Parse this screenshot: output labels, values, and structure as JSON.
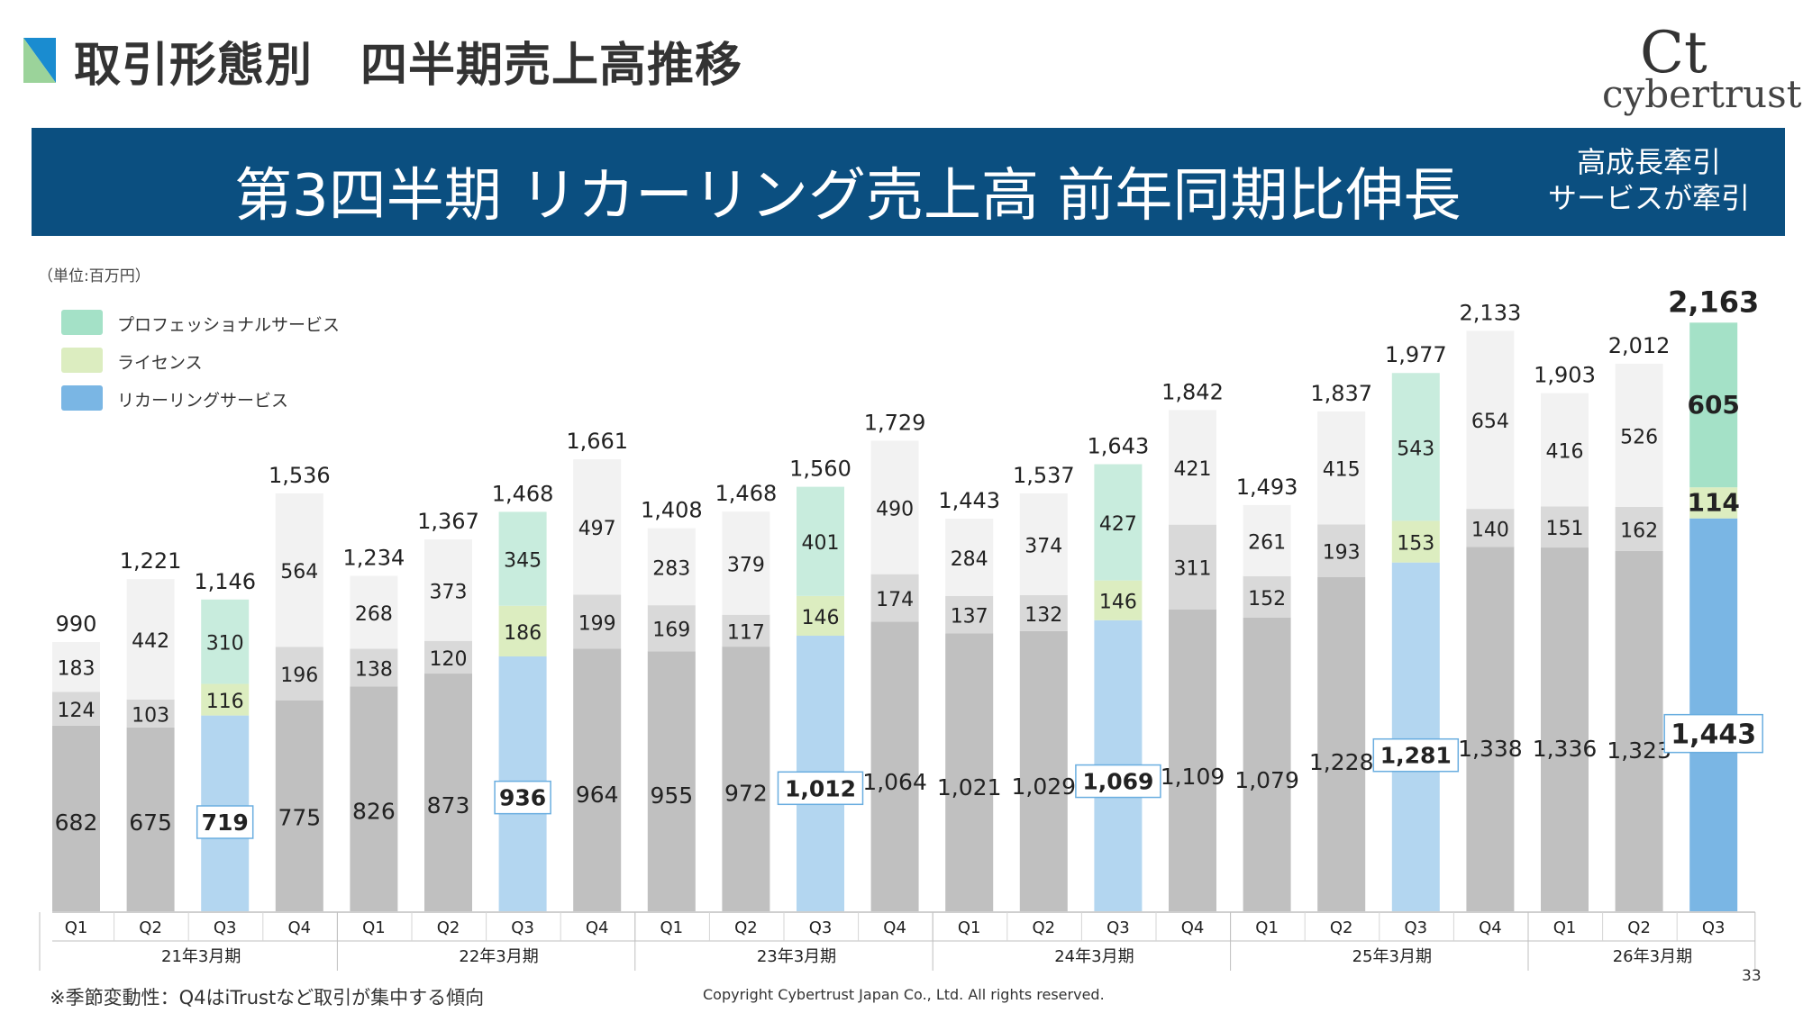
{
  "header": {
    "title": "取引形態別　四半期売上高推移",
    "logo_mark": "Ct",
    "logo_text": "cybertrust"
  },
  "banner": {
    "main": "第3四半期 リカーリング売上高 前年同期比伸長",
    "sub_line1": "高成長牽引",
    "sub_line2": "サービスが牽引"
  },
  "unit_label": "（単位:百万円）",
  "footnote": "※季節変動性：Q4はiTrustなど取引が集中する傾向",
  "copyright": "Copyright Cybertrust Japan Co., Ltd. All rights reserved.",
  "page_number": "33",
  "colors": {
    "recurring": "#b3d6f0",
    "recurring_latest": "#7ab6e4",
    "license": "#dcedc0",
    "professional": "#c8ecdd",
    "professional_latest": "#a4e1c7",
    "grey_bottom": "#c0c0c0",
    "grey_middle": "#d9d9d9",
    "grey_top": "#f2f2f2",
    "banner": "#0b4f80"
  },
  "chart_data": {
    "type": "bar",
    "stacked": true,
    "legend": [
      {
        "name": "プロフェッショナルサービス",
        "color": "#a4e1c7"
      },
      {
        "name": "ライセンス",
        "color": "#dcedc0"
      },
      {
        "name": "リカーリングサービス",
        "color": "#7ab6e4"
      }
    ],
    "legend_position": "top-left",
    "grid": false,
    "ylim": [
      0,
      2163
    ],
    "categories": [
      "Q1",
      "Q2",
      "Q3",
      "Q4",
      "Q1",
      "Q2",
      "Q3",
      "Q4",
      "Q1",
      "Q2",
      "Q3",
      "Q4",
      "Q1",
      "Q2",
      "Q3",
      "Q4",
      "Q1",
      "Q2",
      "Q3",
      "Q4",
      "Q1",
      "Q2",
      "Q3"
    ],
    "fiscal_years": [
      {
        "label": "21年3月期",
        "quarters": 4
      },
      {
        "label": "22年3月期",
        "quarters": 4
      },
      {
        "label": "23年3月期",
        "quarters": 4
      },
      {
        "label": "24年3月期",
        "quarters": 4
      },
      {
        "label": "25年3月期",
        "quarters": 4
      },
      {
        "label": "26年3月期",
        "quarters": 3
      }
    ],
    "series": [
      {
        "name": "リカーリングサービス",
        "values": [
          682,
          675,
          719,
          775,
          826,
          873,
          936,
          964,
          955,
          972,
          1012,
          1064,
          1021,
          1029,
          1069,
          1109,
          1079,
          1228,
          1281,
          1338,
          1336,
          1323,
          1443
        ]
      },
      {
        "name": "ライセンス",
        "values": [
          124,
          103,
          116,
          196,
          138,
          120,
          186,
          199,
          169,
          117,
          146,
          174,
          137,
          132,
          146,
          311,
          152,
          193,
          153,
          140,
          151,
          162,
          114
        ]
      },
      {
        "name": "プロフェッショナルサービス",
        "values": [
          183,
          442,
          310,
          564,
          268,
          373,
          345,
          497,
          283,
          379,
          401,
          490,
          284,
          374,
          427,
          421,
          261,
          415,
          543,
          654,
          416,
          526,
          605
        ]
      }
    ],
    "totals": [
      990,
      1221,
      1146,
      1536,
      1234,
      1367,
      1468,
      1661,
      1408,
      1468,
      1560,
      1729,
      1443,
      1537,
      1643,
      1842,
      1493,
      1837,
      1977,
      2133,
      1903,
      2012,
      2163
    ],
    "value_labels": [
      [
        "682",
        "124",
        "183",
        "990"
      ],
      [
        "675",
        "103",
        "442",
        "1,221"
      ],
      [
        "719",
        "116",
        "310",
        "1,146"
      ],
      [
        "775",
        "196",
        "564",
        "1,536"
      ],
      [
        "826",
        "138",
        "268",
        "1,234"
      ],
      [
        "873",
        "120",
        "373",
        "1,367"
      ],
      [
        "936",
        "186",
        "345",
        "1,468"
      ],
      [
        "964",
        "199",
        "497",
        "1,661"
      ],
      [
        "955",
        "169",
        "283",
        "1,408"
      ],
      [
        "972",
        "117",
        "379",
        "1,468"
      ],
      [
        "1,012",
        "146",
        "401",
        "1,560"
      ],
      [
        "1,064",
        "174",
        "490",
        "1,729"
      ],
      [
        "1,021",
        "137",
        "284",
        "1,443"
      ],
      [
        "1,029",
        "132",
        "374",
        "1,537"
      ],
      [
        "1,069",
        "146",
        "427",
        "1,643"
      ],
      [
        "1,109",
        "311",
        "421",
        "1,842"
      ],
      [
        "1,079",
        "152",
        "261",
        "1,493"
      ],
      [
        "1,228",
        "193",
        "415",
        "1,837"
      ],
      [
        "1,281",
        "153",
        "543",
        "1,977"
      ],
      [
        "1,338",
        "140",
        "654",
        "2,133"
      ],
      [
        "1,336",
        "151",
        "416",
        "1,903"
      ],
      [
        "1,323",
        "162",
        "526",
        "2,012"
      ],
      [
        "1,443",
        "114",
        "605",
        "2,163"
      ]
    ],
    "highlighted_quarters": [
      2,
      6,
      10,
      14,
      18,
      22
    ],
    "latest_index": 22
  }
}
